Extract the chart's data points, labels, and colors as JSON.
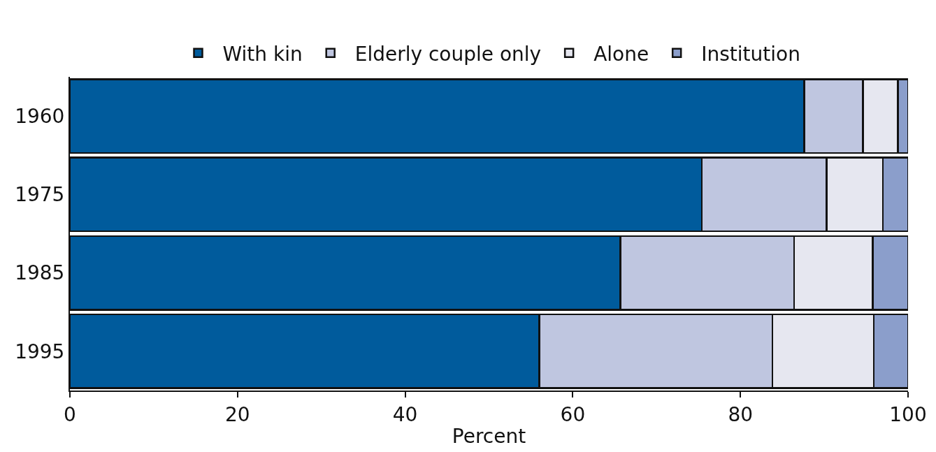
{
  "chart_data": {
    "type": "bar",
    "orientation": "horizontal",
    "stacked": true,
    "xlabel": "Percent",
    "categories": [
      "1960",
      "1975",
      "1985",
      "1995"
    ],
    "series": [
      {
        "name": "With kin",
        "color": "#005b9c",
        "values": [
          87.6,
          75.4,
          65.7,
          56
        ]
      },
      {
        "name": "Elderly couple only",
        "color": "#bfc6e0",
        "values": [
          7,
          14.9,
          20.7,
          27.8
        ]
      },
      {
        "name": "Alone",
        "color": "#e6e7f0",
        "values": [
          4.2,
          6.7,
          9.4,
          12.1
        ]
      },
      {
        "name": "Institution",
        "color": "#8b9ecb",
        "values": [
          1.2,
          3,
          4.2,
          4.1
        ]
      }
    ],
    "xlim": [
      0,
      100
    ],
    "xticks": [
      0,
      20,
      40,
      60,
      80,
      100
    ],
    "grid": false,
    "legend": "top"
  }
}
